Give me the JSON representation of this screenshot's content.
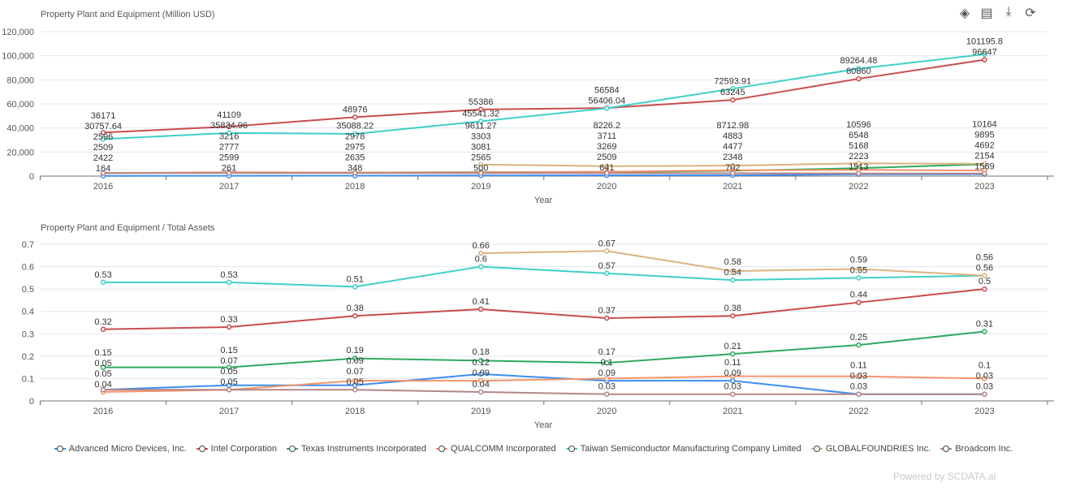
{
  "toolbar": {
    "icons": [
      "tag-icon",
      "table-icon",
      "download-icon",
      "refresh-icon"
    ]
  },
  "watermark": "Powered by SCDATA.ai",
  "series_meta": [
    {
      "name": "Advanced Micro Devices, Inc.",
      "color": "#3d8ef0"
    },
    {
      "name": "Intel Corporation",
      "color": "#c94c4c"
    },
    {
      "name": "Texas Instruments Incorporated",
      "color": "#2eaa5f"
    },
    {
      "name": "QUALCOMM Incorporated",
      "color": "#f5956b"
    },
    {
      "name": "Taiwan Semiconductor Manufacturing Company Limited",
      "color": "#3fcfc8"
    },
    {
      "name": "GLOBALFOUNDRIES Inc.",
      "color": "#dcb37e"
    },
    {
      "name": "Broadcom Inc.",
      "color": "#b58585"
    }
  ],
  "chart_data": [
    {
      "type": "line",
      "title": "Property Plant and Equipment (Million USD)",
      "xlabel": "Year",
      "ylabel": "",
      "categories": [
        "2016",
        "2017",
        "2018",
        "2019",
        "2020",
        "2021",
        "2022",
        "2023"
      ],
      "ylim": [
        0,
        120000
      ],
      "yticks": [
        "0",
        "20,000",
        "40,000",
        "60,000",
        "80,000",
        "100,000",
        "120,000"
      ],
      "grid": true,
      "legend": "bottom",
      "series": [
        {
          "name": "Advanced Micro Devices, Inc.",
          "values": [
            164,
            261,
            348,
            500,
            641,
            702,
            1513,
            1589
          ]
        },
        {
          "name": "Intel Corporation",
          "values": [
            36171,
            41109,
            48976,
            55386,
            56584,
            63245,
            80860,
            96647
          ]
        },
        {
          "name": "Texas Instruments Incorporated",
          "values": [
            2596,
            2777,
            2978,
            3303,
            3269,
            4477,
            6548,
            9895
          ]
        },
        {
          "name": "QUALCOMM Incorporated",
          "values": [
            2422,
            3216,
            2975,
            3081,
            3711,
            4883,
            5168,
            4692
          ]
        },
        {
          "name": "Taiwan Semiconductor Manufacturing Company Limited",
          "values": [
            30757.64,
            35834.96,
            35088.22,
            45541.32,
            56406.04,
            72593.91,
            89264.48,
            101195.8
          ]
        },
        {
          "name": "GLOBALFOUNDRIES Inc.",
          "values": [
            null,
            null,
            null,
            9611.27,
            8226.2,
            8712.98,
            10596,
            10164
          ]
        },
        {
          "name": "Broadcom Inc.",
          "values": [
            2509,
            2599,
            2635,
            2565,
            2509,
            2348,
            2223,
            2154
          ]
        }
      ]
    },
    {
      "type": "line",
      "title": "Property Plant and Equipment / Total Assets",
      "xlabel": "Year",
      "ylabel": "",
      "categories": [
        "2016",
        "2017",
        "2018",
        "2019",
        "2020",
        "2021",
        "2022",
        "2023"
      ],
      "ylim": [
        0,
        0.7
      ],
      "yticks": [
        "0",
        "0.1",
        "0.2",
        "0.3",
        "0.4",
        "0.5",
        "0.6",
        "0.7"
      ],
      "grid": true,
      "legend": "bottom",
      "series": [
        {
          "name": "Advanced Micro Devices, Inc.",
          "values": [
            0.05,
            0.07,
            0.07,
            0.12,
            0.09,
            0.09,
            0.03,
            0.03
          ]
        },
        {
          "name": "Intel Corporation",
          "values": [
            0.32,
            0.33,
            0.38,
            0.41,
            0.37,
            0.38,
            0.44,
            0.5
          ]
        },
        {
          "name": "Texas Instruments Incorporated",
          "values": [
            0.15,
            0.15,
            0.19,
            0.18,
            0.17,
            0.21,
            0.25,
            0.31
          ]
        },
        {
          "name": "QUALCOMM Incorporated",
          "values": [
            0.04,
            0.05,
            0.09,
            0.09,
            0.1,
            0.11,
            0.11,
            0.1
          ]
        },
        {
          "name": "Taiwan Semiconductor Manufacturing Company Limited",
          "values": [
            0.53,
            0.53,
            0.51,
            0.6,
            0.57,
            0.54,
            0.55,
            0.56
          ]
        },
        {
          "name": "GLOBALFOUNDRIES Inc.",
          "values": [
            null,
            null,
            null,
            0.66,
            0.67,
            0.58,
            0.59,
            0.56
          ]
        },
        {
          "name": "Broadcom Inc.",
          "values": [
            0.05,
            0.05,
            0.05,
            0.04,
            0.03,
            0.03,
            0.03,
            0.03
          ]
        }
      ]
    }
  ]
}
